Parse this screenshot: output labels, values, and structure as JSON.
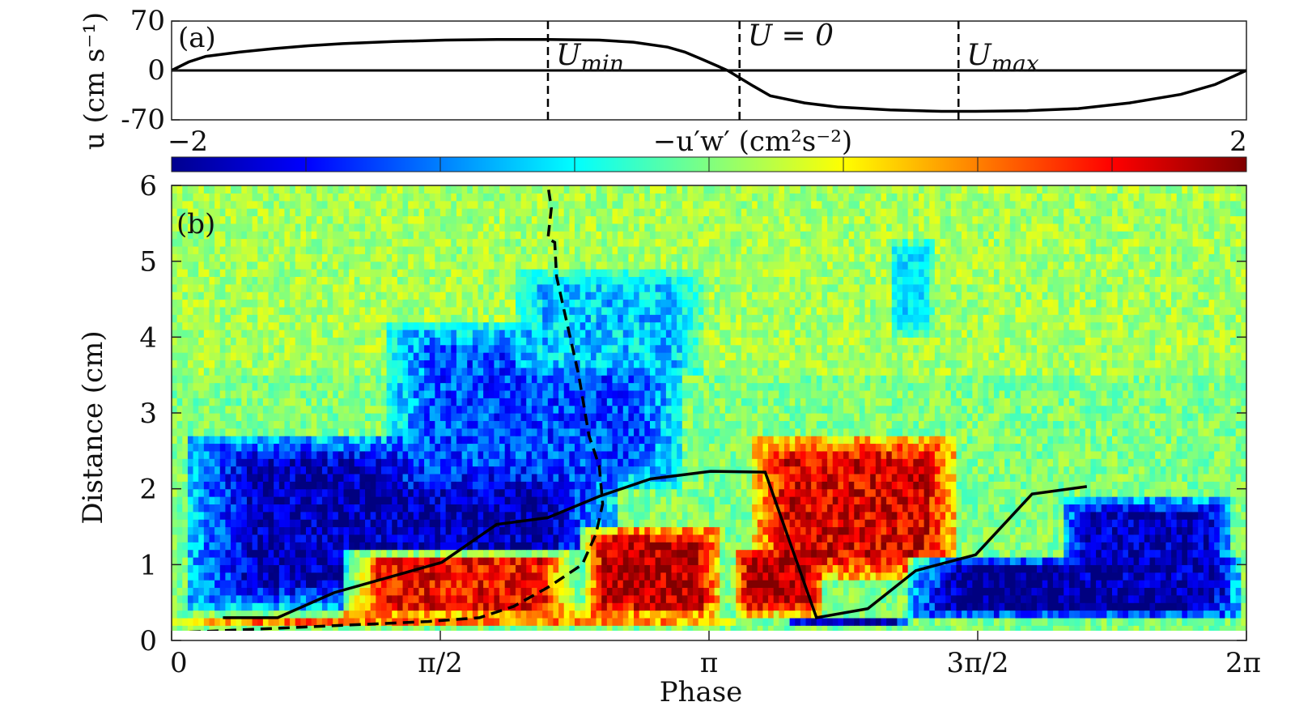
{
  "chart_data": [
    {
      "type": "line",
      "panel_label": "(a)",
      "ylabel": "u (cm s⁻¹)",
      "xlim": [
        0,
        6.2832
      ],
      "ylim": [
        -70,
        70
      ],
      "yticks": [
        "70",
        "0",
        "-70"
      ],
      "series": [
        {
          "x": [
            0,
            0.1,
            0.2,
            0.4,
            0.6,
            0.8,
            1.0,
            1.3,
            1.6,
            1.9,
            2.2,
            2.5,
            2.7,
            2.9,
            3.0,
            3.1,
            3.25,
            3.4,
            3.5,
            3.7,
            3.9,
            4.2,
            4.5,
            4.7,
            5.0,
            5.3,
            5.6,
            5.9,
            6.1,
            6.2832
          ],
          "values": [
            0,
            12,
            20,
            26,
            31,
            35,
            38,
            41,
            43,
            44,
            44,
            43,
            40,
            33,
            26,
            16,
            0,
            -22,
            -36,
            -46,
            -52,
            -56,
            -58,
            -58,
            -57,
            -54,
            -46,
            -34,
            -20,
            0
          ]
        }
      ],
      "annotations": [
        {
          "text": "U_min",
          "x": 2.2
        },
        {
          "text": "U = 0",
          "x": 3.32
        },
        {
          "text": "U_max",
          "x": 4.6
        }
      ]
    },
    {
      "type": "heatmap",
      "panel_label": "(b)",
      "xlabel": "Phase",
      "ylabel": "Distance (cm)",
      "xlim": [
        0,
        6.2832
      ],
      "ylim": [
        0,
        6
      ],
      "xticks": [
        "0",
        "π/2",
        "π",
        "3π/2",
        "2π"
      ],
      "yticks": [
        "0",
        "1",
        "2",
        "3",
        "4",
        "5",
        "6"
      ],
      "colorbar": {
        "label": "−u′w′ (cm²s⁻²)",
        "min_label": "−2",
        "max_label": "2",
        "range": [
          -2,
          2
        ],
        "colormap": "jet"
      },
      "regions": [
        {
          "x0": 0.08,
          "x1": 2.6,
          "y0": 0.4,
          "y1": 2.7,
          "value": -1.8
        },
        {
          "x0": 1.25,
          "x1": 3.0,
          "y0": 2.0,
          "y1": 4.2,
          "value": -1.2
        },
        {
          "x0": 2.0,
          "x1": 3.1,
          "y0": 3.5,
          "y1": 4.9,
          "value": -0.7
        },
        {
          "x0": 4.2,
          "x1": 4.45,
          "y0": 4.0,
          "y1": 5.3,
          "value": -0.6
        },
        {
          "x0": 1.0,
          "x1": 2.4,
          "y0": 0.3,
          "y1": 1.2,
          "value": 1.5
        },
        {
          "x0": 2.4,
          "x1": 3.2,
          "y0": 0.3,
          "y1": 1.5,
          "value": 1.8
        },
        {
          "x0": 3.4,
          "x1": 4.6,
          "y0": 0.8,
          "y1": 2.7,
          "value": 1.6
        },
        {
          "x0": 3.3,
          "x1": 3.8,
          "y0": 0.35,
          "y1": 1.2,
          "value": 1.8
        },
        {
          "x0": 4.3,
          "x1": 6.25,
          "y0": 0.3,
          "y1": 1.1,
          "value": -2.0
        },
        {
          "x0": 5.2,
          "x1": 6.2,
          "y0": 0.5,
          "y1": 1.9,
          "value": -1.8
        },
        {
          "x0": 0.0,
          "x1": 3.3,
          "y0": 0.2,
          "y1": 0.3,
          "value": 1.0
        },
        {
          "x0": 3.6,
          "x1": 4.3,
          "y0": 0.2,
          "y1": 0.3,
          "value": -2.0
        },
        {
          "x0": 0.0,
          "x1": 6.2832,
          "y0": 0.1,
          "y1": 0.2,
          "value": 0.0
        }
      ],
      "series": [
        {
          "style": "solid",
          "x": [
            0.3,
            0.62,
            0.95,
            1.25,
            1.58,
            1.9,
            2.2,
            2.5,
            2.8,
            3.15,
            3.47,
            3.77,
            4.07,
            4.35,
            4.7,
            5.03,
            5.35
          ],
          "values": [
            0.3,
            0.3,
            0.63,
            0.82,
            1.03,
            1.53,
            1.62,
            1.9,
            2.13,
            2.23,
            2.22,
            0.3,
            0.42,
            0.92,
            1.13,
            1.93,
            2.03
          ]
        },
        {
          "style": "dashed",
          "x": [
            0.0,
            0.5,
            1.0,
            1.5,
            1.8,
            2.0,
            2.2,
            2.4,
            2.48,
            2.52,
            2.5,
            2.44,
            2.38,
            2.31,
            2.25,
            2.24,
            2.2,
            2.22,
            2.2
          ],
          "values": [
            0.1,
            0.15,
            0.2,
            0.25,
            0.3,
            0.45,
            0.7,
            1.0,
            1.4,
            1.8,
            2.3,
            2.7,
            3.5,
            4.2,
            4.8,
            5.25,
            5.3,
            5.7,
            6.0
          ]
        }
      ]
    }
  ]
}
